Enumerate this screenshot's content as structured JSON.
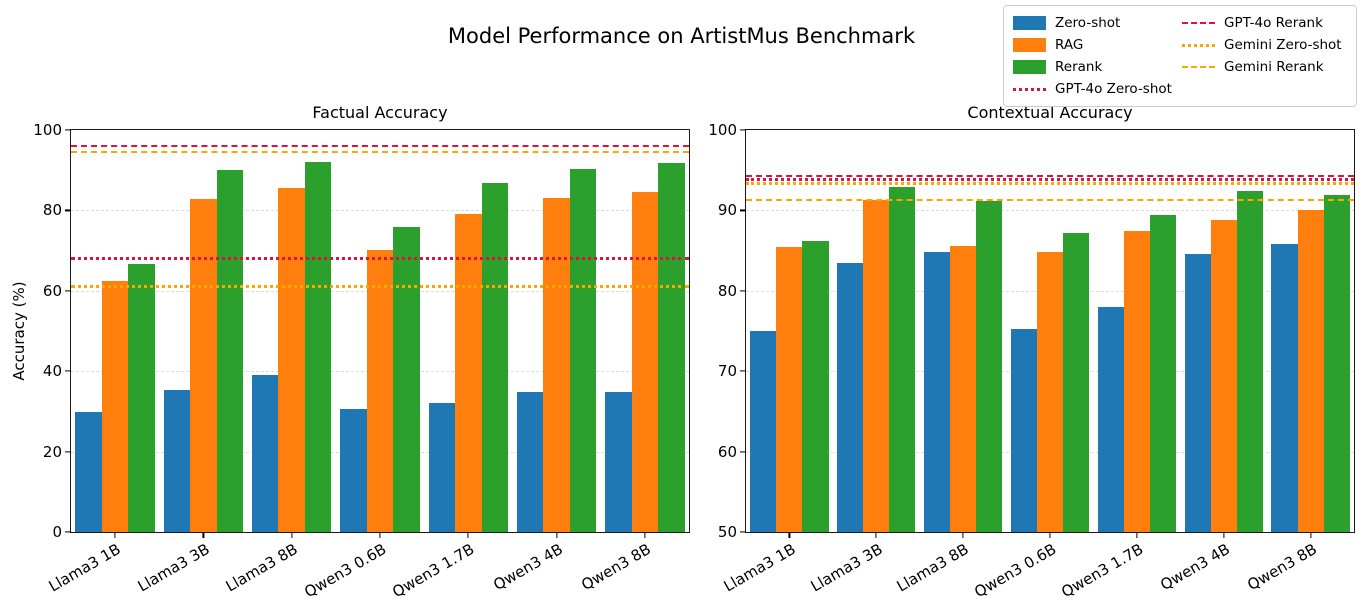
{
  "title": "Model Performance on ArtistMus Benchmark",
  "ylabel": "Accuracy (%)",
  "colors": {
    "zero_shot": "#1f77b4",
    "rag": "#ff7f0e",
    "rerank": "#2ca02c",
    "gpt4o_line": "#dc143c",
    "gemini_line": "#ffa500",
    "grid": "#dcdcdc"
  },
  "legend": {
    "items": [
      {
        "label": "Zero-shot",
        "style": "patch",
        "color": "#1f77b4"
      },
      {
        "label": "RAG",
        "style": "patch",
        "color": "#ff7f0e"
      },
      {
        "label": "Rerank",
        "style": "patch",
        "color": "#2ca02c"
      },
      {
        "label": "GPT-4o Zero-shot",
        "style": "dotted",
        "color": "#dc143c"
      },
      {
        "label": "GPT-4o Rerank",
        "style": "dashed",
        "color": "#dc143c"
      },
      {
        "label": "Gemini Zero-shot",
        "style": "dotted",
        "color": "#ffa500"
      },
      {
        "label": "Gemini Rerank",
        "style": "dashed",
        "color": "#ffa500"
      }
    ]
  },
  "chart_data": [
    {
      "type": "bar",
      "title": "Factual Accuracy",
      "ylabel": "Accuracy (%)",
      "ylim": [
        0,
        100
      ],
      "yticks": [
        0,
        20,
        40,
        60,
        80,
        100
      ],
      "grid": true,
      "categories": [
        "Llama3 1B",
        "Llama3 3B",
        "Llama3 8B",
        "Qwen3 0.6B",
        "Qwen3 1.7B",
        "Qwen3 4B",
        "Qwen3 8B"
      ],
      "series": [
        {
          "name": "Zero-shot",
          "color": "#1f77b4",
          "values": [
            29.8,
            35.3,
            39.1,
            30.6,
            32.0,
            34.8,
            34.8
          ]
        },
        {
          "name": "RAG",
          "color": "#ff7f0e",
          "values": [
            62.4,
            82.8,
            85.5,
            70.2,
            79.2,
            83.2,
            84.7
          ]
        },
        {
          "name": "Rerank",
          "color": "#2ca02c",
          "values": [
            66.6,
            90.0,
            92.1,
            75.8,
            86.7,
            90.4,
            91.9
          ]
        }
      ],
      "baselines": [
        {
          "name": "GPT-4o Zero-shot",
          "style": "dotted",
          "color": "#dc143c",
          "value": 67.3
        },
        {
          "name": "GPT-4o Rerank",
          "style": "dashed",
          "color": "#dc143c",
          "value": 95.5
        },
        {
          "name": "Gemini Zero-shot",
          "style": "dotted",
          "color": "#ffa500",
          "value": 60.5
        },
        {
          "name": "Gemini Rerank",
          "style": "dashed",
          "color": "#ffa500",
          "value": 94.0
        }
      ]
    },
    {
      "type": "bar",
      "title": "Contextual Accuracy",
      "ylabel": "",
      "ylim": [
        50,
        100
      ],
      "yticks": [
        50,
        60,
        70,
        80,
        90,
        100
      ],
      "grid": true,
      "categories": [
        "Llama3 1B",
        "Llama3 3B",
        "Llama3 8B",
        "Qwen3 0.6B",
        "Qwen3 1.7B",
        "Qwen3 4B",
        "Qwen3 8B"
      ],
      "series": [
        {
          "name": "Zero-shot",
          "color": "#1f77b4",
          "values": [
            75.0,
            83.5,
            84.8,
            75.3,
            78.0,
            84.6,
            85.8
          ]
        },
        {
          "name": "RAG",
          "color": "#ff7f0e",
          "values": [
            85.4,
            91.3,
            85.6,
            84.8,
            87.4,
            88.8,
            90.1
          ]
        },
        {
          "name": "Rerank",
          "color": "#2ca02c",
          "values": [
            86.2,
            92.9,
            91.2,
            87.2,
            89.4,
            92.4,
            91.9
          ]
        }
      ],
      "baselines": [
        {
          "name": "GPT-4o Zero-shot",
          "style": "dotted",
          "color": "#dc143c",
          "value": 93.5
        },
        {
          "name": "GPT-4o Rerank",
          "style": "dashed",
          "color": "#dc143c",
          "value": 94.0
        },
        {
          "name": "Gemini Zero-shot",
          "style": "dotted",
          "color": "#ffa500",
          "value": 93.0
        },
        {
          "name": "Gemini Rerank",
          "style": "dashed",
          "color": "#ffa500",
          "value": 91.0
        }
      ]
    }
  ]
}
